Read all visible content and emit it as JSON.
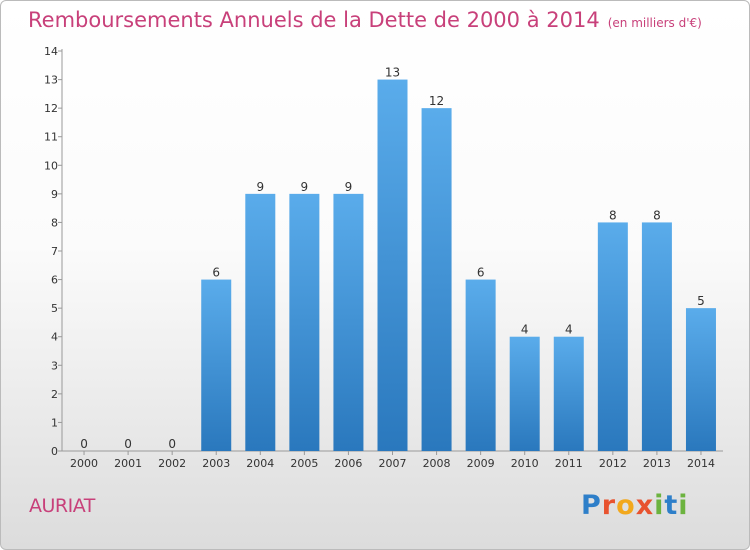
{
  "chart_data": {
    "type": "bar",
    "title": "Remboursements Annuels de la Dette de 2000 à 2014",
    "subtitle": "(en milliers d'€)",
    "xlabel": "",
    "ylabel": "",
    "categories": [
      "2000",
      "2001",
      "2002",
      "2003",
      "2004",
      "2005",
      "2006",
      "2007",
      "2008",
      "2009",
      "2010",
      "2011",
      "2012",
      "2013",
      "2014"
    ],
    "values": [
      0,
      0,
      0,
      6,
      9,
      9,
      9,
      13,
      12,
      6,
      4,
      4,
      8,
      8,
      5
    ],
    "data_labels": [
      "0",
      "0",
      "0",
      "6",
      "9",
      "9",
      "9",
      "13",
      "12",
      "6",
      "4",
      "4",
      "8",
      "8",
      "5"
    ],
    "yticks": [
      "0",
      "1",
      "2",
      "3",
      "4",
      "5",
      "6",
      "7",
      "8",
      "9",
      "10",
      "11",
      "12",
      "13",
      "14"
    ],
    "ylim": [
      0,
      14
    ],
    "grid": false,
    "bar_color": "#4a9fe0"
  },
  "location": "AURIAT",
  "logo": {
    "letters": [
      "P",
      "r",
      "o",
      "x",
      "i",
      "t",
      "i"
    ]
  }
}
